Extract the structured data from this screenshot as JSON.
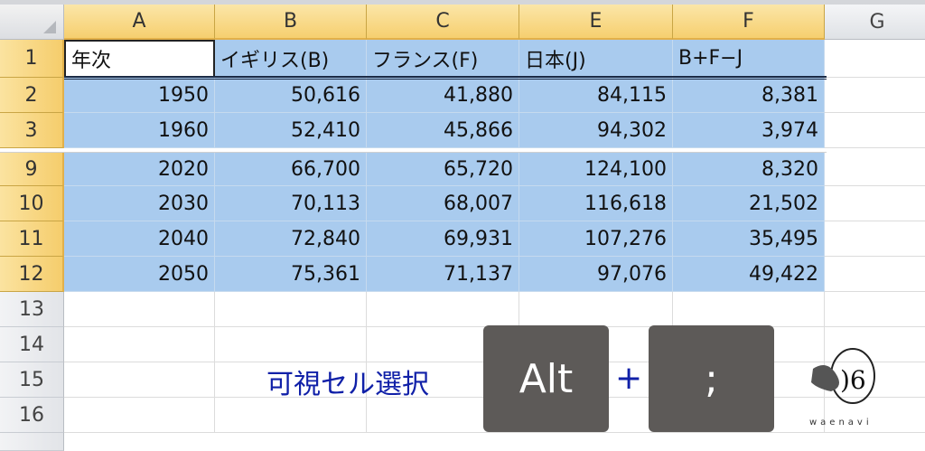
{
  "columns": [
    "A",
    "B",
    "C",
    "E",
    "F",
    "G"
  ],
  "row_numbers": [
    "1",
    "2",
    "3",
    "9",
    "10",
    "11",
    "12",
    "13",
    "14",
    "15",
    "16"
  ],
  "header_row": [
    "年次",
    "イギリス(B)",
    "フランス(F)",
    "日本(J)",
    "B+F−J"
  ],
  "rows": [
    [
      "1950",
      "50,616",
      "41,880",
      "84,115",
      "8,381"
    ],
    [
      "1960",
      "52,410",
      "45,866",
      "94,302",
      "3,974"
    ],
    [
      "2020",
      "66,700",
      "65,720",
      "124,100",
      "8,320"
    ],
    [
      "2030",
      "70,113",
      "68,007",
      "116,618",
      "21,502"
    ],
    [
      "2040",
      "72,840",
      "69,931",
      "107,276",
      "35,495"
    ],
    [
      "2050",
      "75,361",
      "71,137",
      "97,076",
      "49,422"
    ]
  ],
  "overlay": {
    "caption": "可視セル選択",
    "key1": "Alt",
    "plus": "+",
    "key2": ";",
    "logo_text": "waenavi"
  },
  "colors": {
    "selection": "#a9cbee",
    "header_highlight": "#f6cf6f",
    "key": "#5d5a58",
    "caption": "#1020a8"
  }
}
